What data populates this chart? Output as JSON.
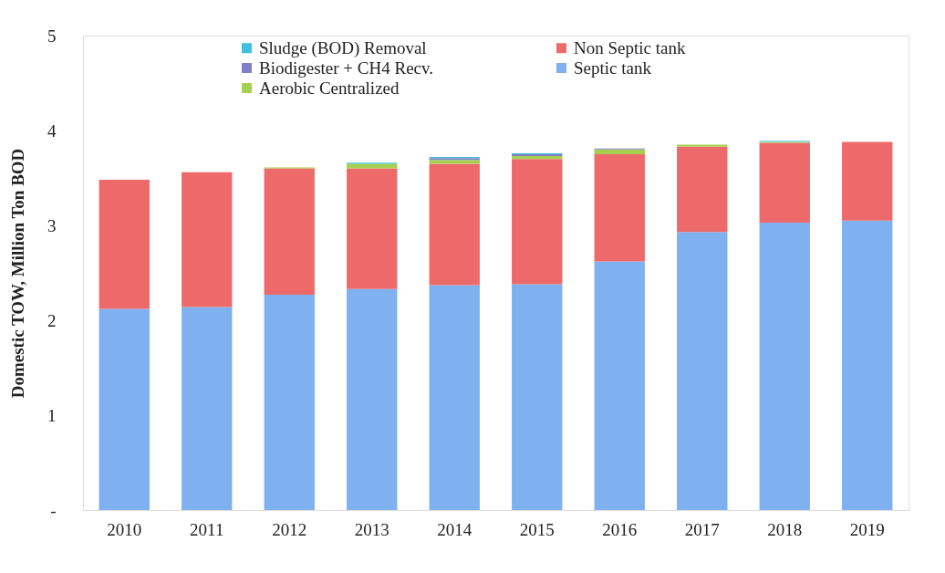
{
  "chart_data": {
    "type": "bar",
    "stacked": true,
    "ylabel": "Domestic TOW, Million Ton BOD",
    "categories": [
      "2010",
      "2011",
      "2012",
      "2013",
      "2014",
      "2015",
      "2016",
      "2017",
      "2018",
      "2019"
    ],
    "series": [
      {
        "name": "Septic tank",
        "color": "#7fb0f0",
        "values": [
          2.12,
          2.14,
          2.27,
          2.33,
          2.37,
          2.38,
          2.62,
          2.93,
          3.03,
          3.05
        ]
      },
      {
        "name": "Non Septic tank",
        "color": "#ee6a6a",
        "values": [
          1.36,
          1.42,
          1.33,
          1.27,
          1.28,
          1.32,
          1.13,
          0.9,
          0.84,
          0.83
        ]
      },
      {
        "name": "Aerobic Centralized",
        "color": "#a8d050",
        "values": [
          0,
          0,
          0.01,
          0.05,
          0.04,
          0.03,
          0.05,
          0.02,
          0.01,
          0
        ]
      },
      {
        "name": "Biodigester + CH4 Recv.",
        "color": "#8080c8",
        "values": [
          0,
          0,
          0,
          0,
          0.02,
          0.02,
          0.01,
          0,
          0,
          0
        ]
      },
      {
        "name": "Sludge (BOD) Removal",
        "color": "#40c0e0",
        "values": [
          0,
          0,
          0,
          0.01,
          0.01,
          0.01,
          0,
          0,
          0.01,
          0
        ]
      }
    ],
    "ylim": [
      0,
      5
    ],
    "yticks": [
      {
        "value": 0,
        "label": "-"
      },
      1,
      2,
      3,
      4,
      5
    ],
    "grid": false,
    "legend": "top"
  }
}
